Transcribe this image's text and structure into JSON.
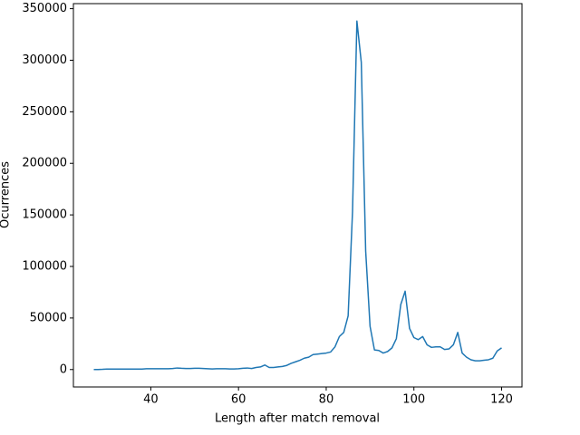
{
  "chart_data": {
    "type": "line",
    "xlabel": "Length after match removal",
    "ylabel": "Ocurrences",
    "x": [
      27,
      28,
      29,
      30,
      31,
      32,
      33,
      34,
      35,
      36,
      37,
      38,
      39,
      40,
      41,
      42,
      43,
      44,
      45,
      46,
      47,
      48,
      49,
      50,
      51,
      52,
      53,
      54,
      55,
      56,
      57,
      58,
      59,
      60,
      61,
      62,
      63,
      64,
      65,
      66,
      67,
      68,
      69,
      70,
      71,
      72,
      73,
      74,
      75,
      76,
      77,
      78,
      79,
      80,
      81,
      82,
      83,
      84,
      85,
      86,
      87,
      88,
      89,
      90,
      91,
      92,
      93,
      94,
      95,
      96,
      97,
      98,
      99,
      100,
      101,
      102,
      103,
      104,
      105,
      106,
      107,
      108,
      109,
      110,
      111,
      112,
      113,
      114,
      115,
      116,
      117,
      118,
      119,
      120
    ],
    "series": [
      {
        "color": "#1f77b4",
        "values": [
          0,
          0,
          200,
          500,
          500,
          500,
          500,
          500,
          500,
          500,
          500,
          500,
          800,
          800,
          800,
          800,
          800,
          800,
          1000,
          1500,
          1200,
          1000,
          1000,
          1200,
          1200,
          1000,
          800,
          600,
          800,
          800,
          800,
          600,
          600,
          800,
          1200,
          1500,
          1000,
          2000,
          2500,
          4400,
          2000,
          2000,
          2500,
          3000,
          4000,
          6000,
          7500,
          9000,
          11000,
          12000,
          14500,
          15000,
          15500,
          16000,
          17000,
          22000,
          32000,
          36000,
          52000,
          153000,
          338000,
          298000,
          115000,
          42000,
          19000,
          18500,
          16000,
          17500,
          21000,
          30000,
          63000,
          76000,
          40000,
          31000,
          29000,
          32000,
          24000,
          21500,
          22000,
          22000,
          19500,
          20000,
          24000,
          36000,
          16000,
          12000,
          9500,
          8500,
          8500,
          9000,
          9500,
          11000,
          18000,
          21000
        ]
      }
    ],
    "xlim": [
      22.35,
      124.65
    ],
    "ylim": [
      -16900,
      354900
    ],
    "xticks": [
      40,
      60,
      80,
      100,
      120
    ],
    "yticks": [
      0,
      50000,
      100000,
      150000,
      200000,
      250000,
      300000,
      350000
    ]
  }
}
